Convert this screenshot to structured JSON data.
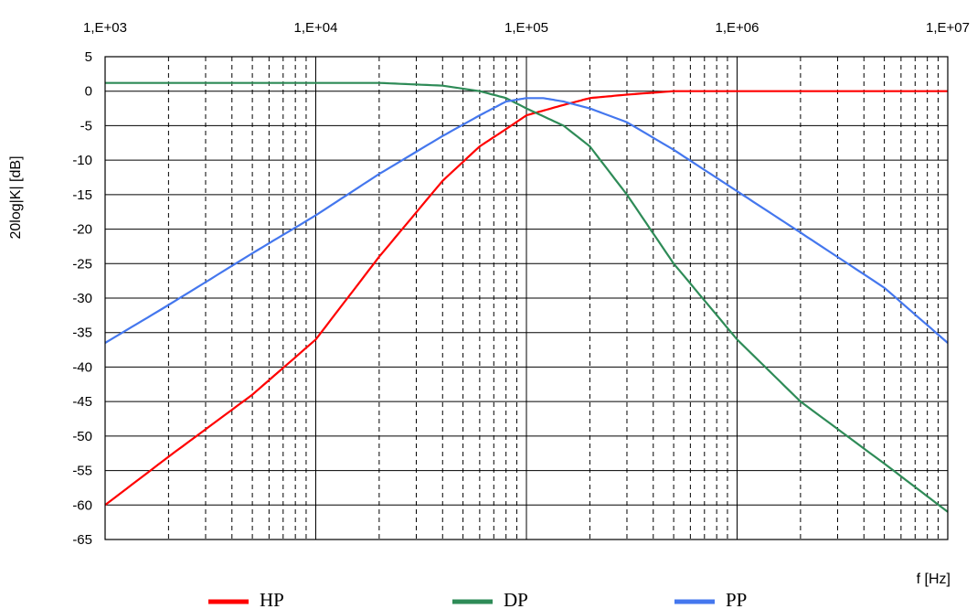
{
  "chart_data": {
    "type": "line",
    "xscale": "log",
    "xlim": [
      1000,
      10000000
    ],
    "ylim": [
      -65,
      5
    ],
    "xlabel": "f [Hz]",
    "ylabel": "20log|K| [dB]",
    "title": "",
    "grid": {
      "horizontal": "solid",
      "vertical_decade": "solid",
      "vertical_minor": "dashed"
    },
    "legend": {
      "position": "bottom"
    },
    "xticks": [
      {
        "value": 1000,
        "label": "1,E+03"
      },
      {
        "value": 10000,
        "label": "1,E+04"
      },
      {
        "value": 100000,
        "label": "1,E+05"
      },
      {
        "value": 1000000,
        "label": "1,E+06"
      },
      {
        "value": 10000000,
        "label": "1,E+07"
      }
    ],
    "yticks": [
      5,
      0,
      -5,
      -10,
      -15,
      -20,
      -25,
      -30,
      -35,
      -40,
      -45,
      -50,
      -55,
      -60,
      -65
    ],
    "series": [
      {
        "name": "HP",
        "color": "#ff0000",
        "x": [
          1000,
          2000,
          5000,
          10000,
          20000,
          40000,
          60000,
          80000,
          100000,
          150000,
          200000,
          300000,
          500000,
          1000000,
          10000000
        ],
        "y": [
          -60,
          -53,
          -44,
          -36,
          -24,
          -13,
          -8,
          -5.5,
          -3.5,
          -2,
          -1,
          -0.5,
          0,
          0,
          0
        ]
      },
      {
        "name": "DP",
        "color": "#2e8b57",
        "x": [
          1000,
          10000,
          20000,
          40000,
          60000,
          80000,
          100000,
          150000,
          200000,
          300000,
          500000,
          1000000,
          2000000,
          5000000,
          10000000
        ],
        "y": [
          1.2,
          1.2,
          1.2,
          0.8,
          0,
          -1,
          -2.5,
          -5,
          -8,
          -15,
          -25,
          -36,
          -45,
          -54,
          -61
        ]
      },
      {
        "name": "PP",
        "color": "#4477ee",
        "x": [
          1000,
          2000,
          5000,
          10000,
          20000,
          40000,
          60000,
          80000,
          100000,
          120000,
          150000,
          200000,
          300000,
          500000,
          1000000,
          2000000,
          5000000,
          10000000
        ],
        "y": [
          -36.5,
          -31,
          -23.5,
          -18,
          -12,
          -6.5,
          -3.5,
          -1.5,
          -1,
          -1,
          -1.5,
          -2.5,
          -4.5,
          -8.5,
          -14.5,
          -20.5,
          -28.5,
          -36.5
        ]
      }
    ]
  }
}
